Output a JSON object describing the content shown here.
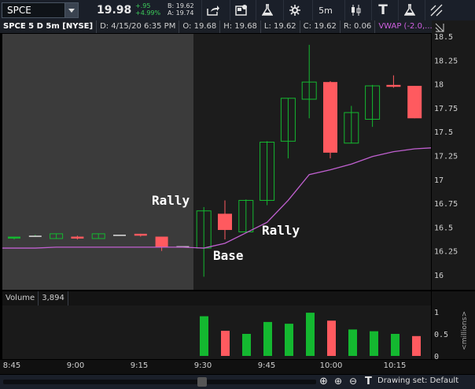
{
  "toolbar": {
    "symbol": "SPCE",
    "last": "19.98",
    "change": "+.95",
    "change_pct": "+4.99%",
    "bid": "B: 19.62",
    "ask": "A: 19.74",
    "timeframe": "5m",
    "text_tool": "T"
  },
  "header": {
    "symbol_desc": "SPCE 5 D 5m [NYSE]",
    "date": "D: 4/15/20 6:35 PM",
    "open": "O: 19.68",
    "high": "H: 19.68",
    "low": "L: 19.62",
    "close": "C: 19.62",
    "range": "R: 0.06",
    "vwap": "VWAP (-2.0,..."
  },
  "colors": {
    "up": "#14b830",
    "down": "#ff5a5f",
    "vwap": "#c060d0",
    "premarket": "#3b3b3b"
  },
  "annotations": [
    "Rally",
    "Rally",
    "Base"
  ],
  "volume": {
    "label": "Volume",
    "value": "3,894",
    "unit": "<millions>"
  },
  "footer": {
    "drawing_set": "Drawing set: Default"
  },
  "chart_data": [
    {
      "type": "candlestick",
      "title": "",
      "y_ticks": [
        "18.5",
        "18.25",
        "18",
        "17.75",
        "17.5",
        "17.25",
        "17",
        "16.75",
        "16.5",
        "16.25",
        "16"
      ],
      "ylim": [
        15.9,
        18.55
      ],
      "x_ticks": [
        "8:45",
        "9:00",
        "9:15",
        "9:30",
        "9:45",
        "10:00",
        "10:15"
      ],
      "candles": [
        {
          "o": 16.38,
          "h": 16.4,
          "l": 16.37,
          "c": 16.4
        },
        {
          "o": 16.41,
          "h": 16.42,
          "l": 16.4,
          "c": 16.41
        },
        {
          "o": 16.38,
          "h": 16.43,
          "l": 16.38,
          "c": 16.43
        },
        {
          "o": 16.4,
          "h": 16.41,
          "l": 16.37,
          "c": 16.38
        },
        {
          "o": 16.38,
          "h": 16.43,
          "l": 16.38,
          "c": 16.43
        },
        {
          "o": 16.42,
          "h": 16.42,
          "l": 16.42,
          "c": 16.42
        },
        {
          "o": 16.43,
          "h": 16.43,
          "l": 16.4,
          "c": 16.41
        },
        {
          "o": 16.4,
          "h": 16.4,
          "l": 16.25,
          "c": 16.29
        },
        {
          "o": 16.3,
          "h": 16.3,
          "l": 16.3,
          "c": 16.3
        },
        {
          "o": 16.28,
          "h": 16.71,
          "l": 15.98,
          "c": 16.67
        },
        {
          "o": 16.64,
          "h": 16.78,
          "l": 16.37,
          "c": 16.47
        },
        {
          "o": 16.45,
          "h": 16.79,
          "l": 16.44,
          "c": 16.78
        },
        {
          "o": 16.78,
          "h": 17.4,
          "l": 16.73,
          "c": 17.39
        },
        {
          "o": 17.4,
          "h": 17.85,
          "l": 17.22,
          "c": 17.85
        },
        {
          "o": 17.84,
          "h": 18.41,
          "l": 17.64,
          "c": 18.02
        },
        {
          "o": 18.02,
          "h": 18.03,
          "l": 17.22,
          "c": 17.28
        },
        {
          "o": 17.38,
          "h": 17.77,
          "l": 17.38,
          "c": 17.7
        },
        {
          "o": 17.63,
          "h": 17.99,
          "l": 17.55,
          "c": 17.98
        },
        {
          "o": 17.99,
          "h": 18.09,
          "l": 17.96,
          "c": 17.97
        },
        {
          "o": 17.98,
          "h": 17.98,
          "l": 17.64,
          "c": 17.64
        }
      ],
      "vwap": [
        16.28,
        16.28,
        16.29,
        16.29,
        16.29,
        16.29,
        16.29,
        16.29,
        16.29,
        16.28,
        16.33,
        16.44,
        16.55,
        16.78,
        17.05,
        17.1,
        17.16,
        17.24,
        17.29,
        17.32
      ]
    },
    {
      "type": "bar",
      "title": "Volume",
      "y_ticks": [
        "1",
        "0.5",
        "0"
      ],
      "ylim": [
        0,
        1.1
      ],
      "values": [
        0.9,
        0.57,
        0.5,
        0.77,
        0.73,
        0.98,
        0.8,
        0.6,
        0.56,
        0.5,
        0.45,
        0.45
      ],
      "directions": [
        "up",
        "down",
        "up",
        "up",
        "up",
        "up",
        "down",
        "up",
        "up",
        "up",
        "down",
        "down"
      ]
    }
  ]
}
